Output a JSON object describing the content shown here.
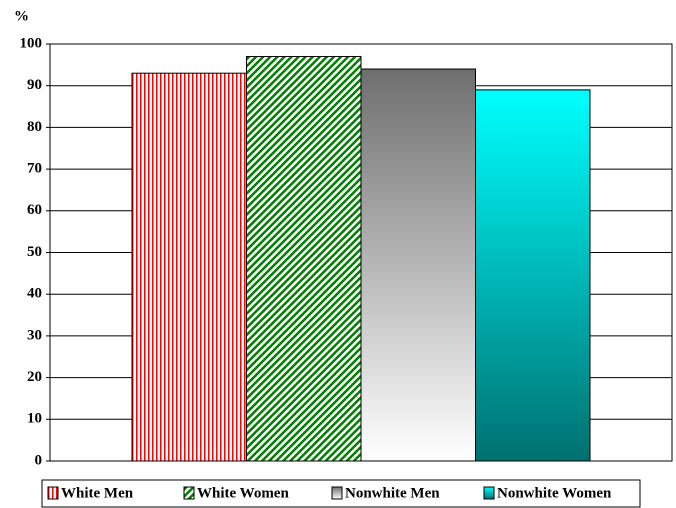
{
  "chart_data": {
    "type": "bar",
    "y_label": "%",
    "categories": [
      null
    ],
    "series": [
      {
        "name": "White Men",
        "color": "#ff0000",
        "values": [
          93
        ]
      },
      {
        "name": "White Women",
        "color": "#008000",
        "values": [
          97
        ]
      },
      {
        "name": "Nonwhite Men",
        "color": "#808080",
        "values": [
          94
        ]
      },
      {
        "name": "Nonwhite Women",
        "color": "#00ffff",
        "values": [
          89
        ]
      }
    ],
    "ylim": [
      0,
      100
    ],
    "yticks": [
      0,
      10,
      20,
      30,
      40,
      50,
      60,
      70,
      80,
      90,
      100
    ],
    "grid": true,
    "legend": "bottom"
  }
}
